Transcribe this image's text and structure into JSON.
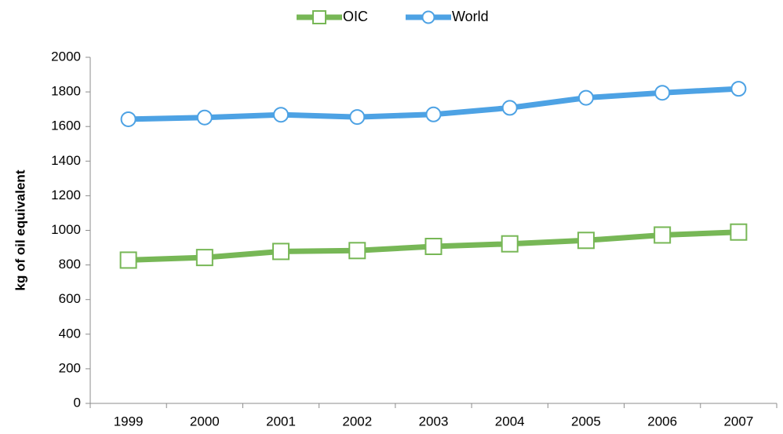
{
  "chart_data": {
    "type": "line",
    "title": "",
    "xlabel": "",
    "ylabel": "kg of oil equivalent",
    "categories": [
      "1999",
      "2000",
      "2001",
      "2002",
      "2003",
      "2004",
      "2005",
      "2006",
      "2007"
    ],
    "ylim": [
      0,
      2000
    ],
    "yticks": [
      0,
      200,
      400,
      600,
      800,
      1000,
      1200,
      1400,
      1600,
      1800,
      2000
    ],
    "grid": false,
    "legend_position": "top-center",
    "series": [
      {
        "name": "OIC",
        "color": "#77b756",
        "marker": "square",
        "values": [
          828,
          843,
          878,
          883,
          907,
          922,
          942,
          973,
          990
        ]
      },
      {
        "name": "World",
        "color": "#4da2e4",
        "marker": "circle",
        "values": [
          1642,
          1652,
          1668,
          1655,
          1670,
          1708,
          1766,
          1795,
          1818
        ]
      }
    ]
  }
}
